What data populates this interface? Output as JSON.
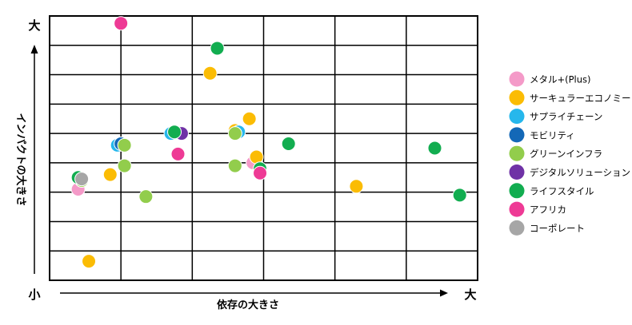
{
  "chart_data": {
    "type": "scatter",
    "title": "",
    "xlabel": "依存の大きさ",
    "ylabel": "インパクトの大きさ",
    "x_axis": {
      "low_label": "小",
      "high_label": "大"
    },
    "y_axis": {
      "high_label": "大"
    },
    "xlim": [
      0,
      6
    ],
    "ylim": [
      0,
      9
    ],
    "grid": true,
    "legend_position": "right",
    "series": [
      {
        "name": "メタル+(Plus)",
        "color": "#f49ac8",
        "points": [
          [
            0.4,
            3.1
          ],
          [
            2.85,
            4.0
          ]
        ]
      },
      {
        "name": "サーキュラーエコノミー",
        "color": "#fbbc04",
        "points": [
          [
            0.55,
            0.65
          ],
          [
            0.85,
            3.6
          ],
          [
            2.25,
            7.05
          ],
          [
            2.6,
            5.1
          ],
          [
            2.8,
            5.5
          ],
          [
            2.9,
            4.2
          ],
          [
            4.3,
            3.2
          ]
        ]
      },
      {
        "name": "サプライチェーン",
        "color": "#26b7ec",
        "points": [
          [
            0.95,
            4.6
          ],
          [
            1.7,
            5.0
          ],
          [
            2.65,
            5.05
          ]
        ]
      },
      {
        "name": "モビリティ",
        "color": "#1368b7",
        "points": [
          [
            1.0,
            4.65
          ]
        ]
      },
      {
        "name": "グリーンインフラ",
        "color": "#92cd4c",
        "points": [
          [
            0.45,
            3.4
          ],
          [
            1.05,
            4.6
          ],
          [
            1.05,
            3.9
          ],
          [
            1.35,
            2.85
          ],
          [
            2.6,
            5.0
          ],
          [
            2.6,
            3.9
          ]
        ]
      },
      {
        "name": "デジタルソリューション",
        "color": "#6f32a6",
        "points": [
          [
            1.85,
            5.0
          ]
        ]
      },
      {
        "name": "ライフスタイル",
        "color": "#12ad50",
        "points": [
          [
            0.4,
            3.5
          ],
          [
            1.75,
            5.05
          ],
          [
            2.35,
            7.9
          ],
          [
            2.95,
            3.8
          ],
          [
            3.35,
            4.65
          ],
          [
            5.4,
            4.5
          ],
          [
            5.75,
            2.9
          ]
        ]
      },
      {
        "name": "アフリカ",
        "color": "#ee3a95",
        "points": [
          [
            1.0,
            8.75
          ],
          [
            1.8,
            4.3
          ],
          [
            2.95,
            3.65
          ]
        ]
      },
      {
        "name": "コーポレート",
        "color": "#a6a6a6",
        "points": [
          [
            0.45,
            3.45
          ]
        ]
      }
    ]
  }
}
